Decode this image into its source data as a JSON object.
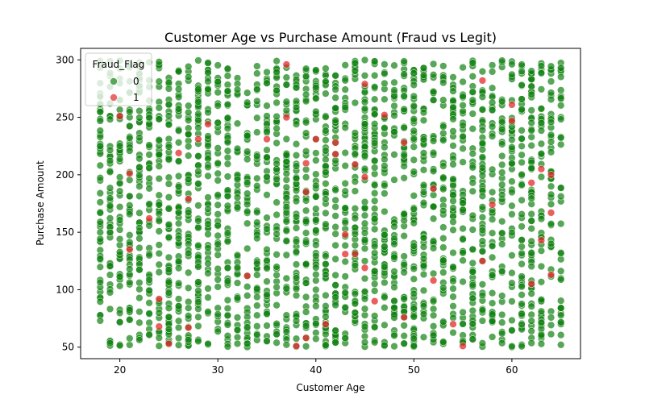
{
  "chart_data": {
    "type": "scatter",
    "title": "Customer Age vs Purchase Amount (Fraud vs Legit)",
    "xlabel": "Customer Age",
    "ylabel": "Purchase Amount",
    "xlim": [
      16,
      67
    ],
    "ylim": [
      40,
      310
    ],
    "xticks": [
      20,
      30,
      40,
      50,
      60
    ],
    "yticks": [
      50,
      100,
      150,
      200,
      250,
      300
    ],
    "legend": {
      "title": "Fraud_Flag",
      "placement": "top-left",
      "entries": [
        {
          "label": "0",
          "color": "#118211"
        },
        {
          "label": "1",
          "color": "#e3292b"
        }
      ]
    },
    "series": [
      {
        "name": "0",
        "color": "#118211",
        "x_range": [
          18,
          65
        ],
        "y_range": [
          50,
          300
        ],
        "note_points": "dense: every integer age 18-65 has many legit customers spread across 50-300"
      },
      {
        "name": "1",
        "color": "#e3292b",
        "points": [
          [
            20,
            251
          ],
          [
            21,
            201
          ],
          [
            21,
            135
          ],
          [
            23,
            162
          ],
          [
            24,
            92
          ],
          [
            24,
            68
          ],
          [
            25,
            53
          ],
          [
            26,
            219
          ],
          [
            27,
            179
          ],
          [
            27,
            67
          ],
          [
            28,
            231
          ],
          [
            29,
            244
          ],
          [
            33,
            112
          ],
          [
            35,
            231
          ],
          [
            37,
            296
          ],
          [
            37,
            250
          ],
          [
            38,
            51
          ],
          [
            39,
            210
          ],
          [
            39,
            185
          ],
          [
            39,
            58
          ],
          [
            40,
            231
          ],
          [
            41,
            70
          ],
          [
            42,
            228
          ],
          [
            42,
            218
          ],
          [
            43,
            148
          ],
          [
            43,
            131
          ],
          [
            44,
            209
          ],
          [
            44,
            131
          ],
          [
            45,
            279
          ],
          [
            45,
            198
          ],
          [
            45,
            119
          ],
          [
            46,
            90
          ],
          [
            47,
            252
          ],
          [
            49,
            228
          ],
          [
            49,
            76
          ],
          [
            52,
            188
          ],
          [
            52,
            108
          ],
          [
            54,
            70
          ],
          [
            55,
            51
          ],
          [
            57,
            282
          ],
          [
            57,
            125
          ],
          [
            58,
            174
          ],
          [
            60,
            261
          ],
          [
            60,
            247
          ],
          [
            62,
            193
          ],
          [
            62,
            105
          ],
          [
            63,
            205
          ],
          [
            63,
            143
          ],
          [
            64,
            200
          ],
          [
            64,
            167
          ],
          [
            64,
            113
          ]
        ]
      }
    ]
  }
}
